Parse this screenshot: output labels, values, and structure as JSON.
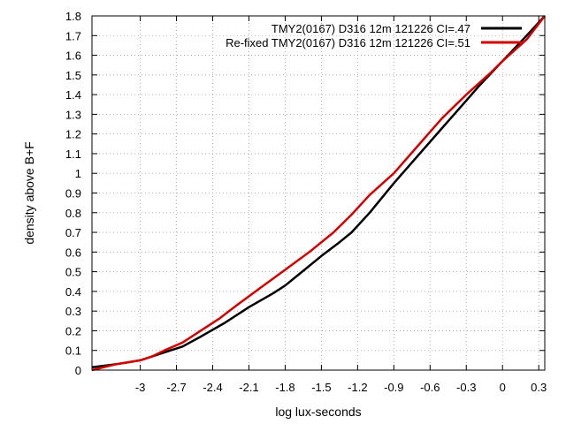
{
  "chart_data": {
    "type": "line",
    "title": "",
    "xlabel": "log lux-seconds",
    "ylabel": "density above B+F",
    "xlim": [
      -3.4,
      0.35
    ],
    "ylim": [
      0,
      1.8
    ],
    "x_ticks": [
      -3,
      -2.7,
      -2.4,
      -2.1,
      -1.8,
      -1.5,
      -1.2,
      -0.9,
      -0.6,
      -0.3,
      0,
      0.3
    ],
    "x_tick_labels": [
      "-3",
      "-2.7",
      "-2.4",
      "-2.1",
      "-1.8",
      "-1.5",
      "-1.2",
      "-0.9",
      "-0.6",
      "-0.3",
      "0",
      "0.3"
    ],
    "y_ticks": [
      0,
      0.1,
      0.2,
      0.3,
      0.4,
      0.5,
      0.6,
      0.7,
      0.8,
      0.9,
      1,
      1.1,
      1.2,
      1.3,
      1.4,
      1.5,
      1.6,
      1.7,
      1.8
    ],
    "y_tick_labels": [
      "0",
      "0.1",
      "0.2",
      "0.3",
      "0.4",
      "0.5",
      "0.6",
      "0.7",
      "0.8",
      "0.9",
      "1",
      "1.1",
      "1.2",
      "1.3",
      "1.4",
      "1.5",
      "1.6",
      "1.7",
      "1.8"
    ],
    "grid": true,
    "legend_position": "top-right",
    "series": [
      {
        "name": "TMY2(0167) D316 12m 121226 CI=.47",
        "color": "#000000",
        "x": [
          -3.4,
          -3.2,
          -3.1,
          -3.0,
          -2.9,
          -2.8,
          -2.65,
          -2.5,
          -2.3,
          -2.1,
          -1.9,
          -1.8,
          -1.7,
          -1.5,
          -1.35,
          -1.25,
          -1.1,
          -0.9,
          -0.7,
          -0.5,
          -0.3,
          -0.2,
          0.0,
          0.2,
          0.35
        ],
        "y": [
          0.015,
          0.03,
          0.04,
          0.05,
          0.07,
          0.09,
          0.12,
          0.17,
          0.24,
          0.32,
          0.39,
          0.43,
          0.48,
          0.58,
          0.65,
          0.7,
          0.8,
          0.95,
          1.09,
          1.23,
          1.37,
          1.44,
          1.57,
          1.7,
          1.8
        ]
      },
      {
        "name": "Re-fixed TMY2(0167) D316 12m 121226 CI=.51",
        "color": "#d40000",
        "x": [
          -3.4,
          -3.2,
          -3.1,
          -3.0,
          -2.9,
          -2.8,
          -2.65,
          -2.5,
          -2.35,
          -2.2,
          -2.0,
          -1.8,
          -1.6,
          -1.4,
          -1.25,
          -1.1,
          -0.9,
          -0.7,
          -0.5,
          -0.3,
          -0.1,
          0.0,
          0.2,
          0.35
        ],
        "y": [
          0.0,
          0.03,
          0.04,
          0.05,
          0.07,
          0.1,
          0.14,
          0.2,
          0.26,
          0.33,
          0.42,
          0.51,
          0.6,
          0.7,
          0.79,
          0.89,
          1.0,
          1.14,
          1.28,
          1.4,
          1.51,
          1.57,
          1.68,
          1.8
        ]
      }
    ]
  }
}
